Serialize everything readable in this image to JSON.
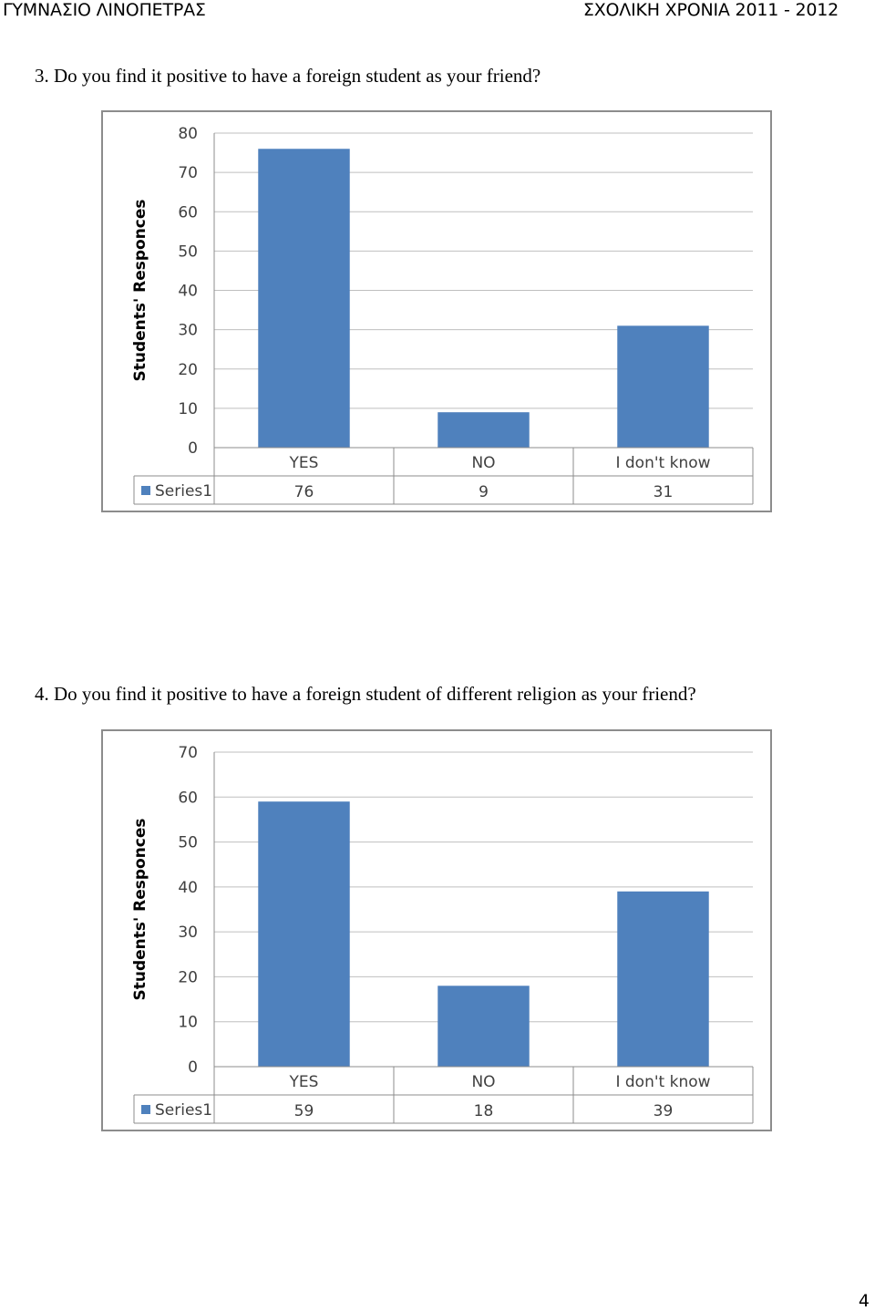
{
  "header": {
    "school": "ΓΥΜΝΑΣΙΟ ΛΙΝΟΠΕΤΡΑΣ",
    "year": "ΣΧΟΛΙΚΗ ΧΡΟΝΙΑ 2011 - 2012"
  },
  "questions": [
    {
      "text": "3.   Do you find it positive to have a foreign student as your friend?"
    },
    {
      "text": "4.   Do you find it positive to have a foreign student of different religion as your friend?"
    }
  ],
  "page_number": "4",
  "colors": {
    "bar": "#4f81bd",
    "grid": "#bfbfbf",
    "axis": "#8c8c8c"
  },
  "chart_data": [
    {
      "type": "bar",
      "categories": [
        "YES",
        "NO",
        "I don't know"
      ],
      "series": [
        {
          "name": "Series1",
          "values": [
            76,
            9,
            31
          ]
        }
      ],
      "xlabel": "",
      "ylabel": "Students' Responces",
      "ylim": [
        0,
        80
      ],
      "yticks": [
        0,
        10,
        20,
        30,
        40,
        50,
        60,
        70,
        80
      ],
      "grid": true,
      "data_table": true
    },
    {
      "type": "bar",
      "categories": [
        "YES",
        "NO",
        "I don't know"
      ],
      "series": [
        {
          "name": "Series1",
          "values": [
            59,
            18,
            39
          ]
        }
      ],
      "xlabel": "",
      "ylabel": "Students' Responces",
      "ylim": [
        0,
        70
      ],
      "yticks": [
        0,
        10,
        20,
        30,
        40,
        50,
        60,
        70
      ],
      "grid": true,
      "data_table": true
    }
  ]
}
